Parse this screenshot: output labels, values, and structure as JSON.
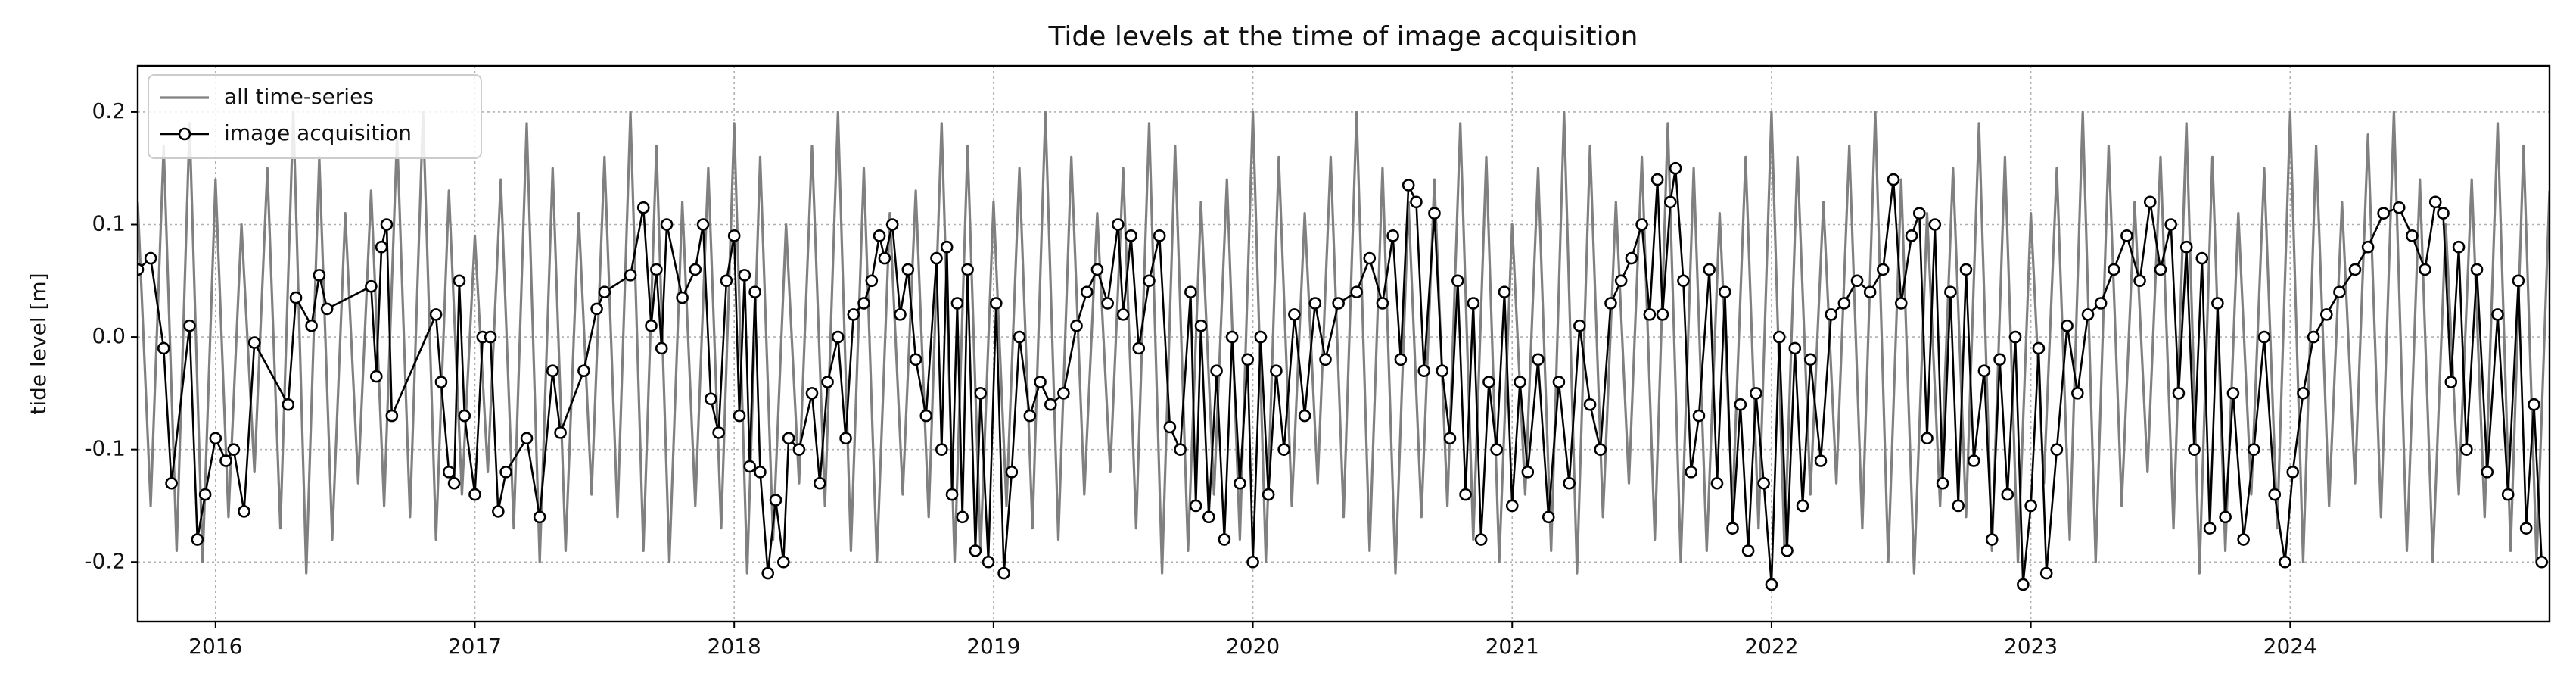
{
  "chart_data": {
    "type": "line",
    "title": "Tide levels at the time of image acquisition",
    "y_label": "tide level [m]",
    "xlim": [
      2015.7,
      2025.0
    ],
    "xticks": [
      2016,
      2017,
      2018,
      2019,
      2020,
      2021,
      2022,
      2023,
      2024
    ],
    "ylim": [
      -0.253,
      0.241
    ],
    "yticks": [
      -0.2,
      -0.1,
      {
        "value": 0,
        "label": "0.0"
      },
      0.1,
      0.2
    ],
    "grid": true,
    "legend": "upper left",
    "series": [
      {
        "name": "all time-series",
        "color": "#808080",
        "marker": false,
        "x": [
          2015.7,
          2015.75,
          2015.8,
          2015.85,
          2015.9,
          2015.95,
          2016,
          2016.05,
          2016.1,
          2016.15,
          2016.2,
          2016.25,
          2016.3,
          2016.35,
          2016.4,
          2016.45,
          2016.5,
          2016.55,
          2016.6,
          2016.65,
          2016.7,
          2016.75,
          2016.8,
          2016.85,
          2016.9,
          2016.95,
          2017,
          2017.05,
          2017.1,
          2017.15,
          2017.2,
          2017.25,
          2017.3,
          2017.35,
          2017.4,
          2017.45,
          2017.5,
          2017.55,
          2017.6,
          2017.65,
          2017.7,
          2017.75,
          2017.8,
          2017.85,
          2017.9,
          2017.95,
          2018,
          2018.05,
          2018.1,
          2018.15,
          2018.2,
          2018.25,
          2018.3,
          2018.35,
          2018.4,
          2018.45,
          2018.5,
          2018.55,
          2018.6,
          2018.65,
          2018.7,
          2018.75,
          2018.8,
          2018.85,
          2018.9,
          2018.95,
          2019,
          2019.05,
          2019.1,
          2019.15,
          2019.2,
          2019.25,
          2019.3,
          2019.35,
          2019.4,
          2019.45,
          2019.5,
          2019.55,
          2019.6,
          2019.65,
          2019.7,
          2019.75,
          2019.8,
          2019.85,
          2019.9,
          2019.95,
          2020,
          2020.05,
          2020.1,
          2020.15,
          2020.2,
          2020.25,
          2020.3,
          2020.35,
          2020.4,
          2020.45,
          2020.5,
          2020.55,
          2020.6,
          2020.65,
          2020.7,
          2020.75,
          2020.8,
          2020.85,
          2020.9,
          2020.95,
          2021,
          2021.05,
          2021.1,
          2021.15,
          2021.2,
          2021.25,
          2021.3,
          2021.35,
          2021.4,
          2021.45,
          2021.5,
          2021.55,
          2021.6,
          2021.65,
          2021.7,
          2021.75,
          2021.8,
          2021.85,
          2021.9,
          2021.95,
          2022,
          2022.05,
          2022.1,
          2022.15,
          2022.2,
          2022.25,
          2022.3,
          2022.35,
          2022.4,
          2022.45,
          2022.5,
          2022.55,
          2022.6,
          2022.65,
          2022.7,
          2022.75,
          2022.8,
          2022.85,
          2022.9,
          2022.95,
          2023,
          2023.05,
          2023.1,
          2023.15,
          2023.2,
          2023.25,
          2023.3,
          2023.35,
          2023.4,
          2023.45,
          2023.5,
          2023.55,
          2023.6,
          2023.65,
          2023.7,
          2023.75,
          2023.8,
          2023.85,
          2023.9,
          2023.95,
          2024,
          2024.05,
          2024.1,
          2024.15,
          2024.2,
          2024.25,
          2024.3,
          2024.35,
          2024.4,
          2024.45,
          2024.5,
          2024.55,
          2024.6,
          2024.65,
          2024.7,
          2024.75,
          2024.8,
          2024.85,
          2024.9,
          2024.95,
          2025
        ],
        "values": [
          0.12,
          -0.15,
          0.17,
          -0.19,
          0.19,
          -0.2,
          0.14,
          -0.16,
          0.1,
          -0.12,
          0.15,
          -0.17,
          0.2,
          -0.21,
          0.16,
          -0.18,
          0.11,
          -0.13,
          0.13,
          -0.15,
          0.18,
          -0.16,
          0.2,
          -0.18,
          0.13,
          -0.14,
          0.09,
          -0.12,
          0.14,
          -0.17,
          0.19,
          -0.2,
          0.15,
          -0.19,
          0.11,
          -0.14,
          0.16,
          -0.16,
          0.2,
          -0.19,
          0.17,
          -0.2,
          0.12,
          -0.15,
          0.15,
          -0.17,
          0.19,
          -0.21,
          0.16,
          -0.18,
          0.1,
          -0.13,
          0.17,
          -0.15,
          0.2,
          -0.19,
          0.15,
          -0.2,
          0.11,
          -0.14,
          0.13,
          -0.16,
          0.19,
          -0.2,
          0.17,
          -0.19,
          0.12,
          -0.15,
          0.15,
          -0.17,
          0.2,
          -0.18,
          0.16,
          -0.14,
          0.11,
          -0.12,
          0.15,
          -0.17,
          0.19,
          -0.21,
          0.17,
          -0.19,
          0.12,
          -0.14,
          0.14,
          -0.18,
          0.2,
          -0.2,
          0.16,
          -0.15,
          0.11,
          -0.13,
          0.16,
          -0.16,
          0.2,
          -0.19,
          0.15,
          -0.21,
          0.12,
          -0.16,
          0.14,
          -0.15,
          0.19,
          -0.18,
          0.16,
          -0.2,
          0.1,
          -0.14,
          0.15,
          -0.19,
          0.2,
          -0.21,
          0.17,
          -0.16,
          0.12,
          -0.13,
          0.16,
          -0.18,
          0.19,
          -0.2,
          0.15,
          -0.19,
          0.11,
          -0.15,
          0.16,
          -0.17,
          0.2,
          -0.19,
          0.16,
          -0.14,
          0.12,
          -0.13,
          0.17,
          -0.17,
          0.2,
          -0.2,
          0.14,
          -0.21,
          0.11,
          -0.15,
          0.15,
          -0.16,
          0.19,
          -0.19,
          0.16,
          -0.2,
          0.11,
          -0.13,
          0.15,
          -0.18,
          0.2,
          -0.2,
          0.17,
          -0.15,
          0.12,
          -0.12,
          0.16,
          -0.17,
          0.19,
          -0.21,
          0.16,
          -0.19,
          0.11,
          -0.14,
          0.15,
          -0.17,
          0.2,
          -0.2,
          0.17,
          -0.15,
          0.12,
          -0.13,
          0.18,
          -0.16,
          0.2,
          -0.19,
          0.14,
          -0.2,
          0.1,
          -0.14,
          0.14,
          -0.16,
          0.19,
          -0.19,
          0.17,
          -0.2,
          0.13
        ]
      },
      {
        "name": "image acquisition",
        "color": "#000000",
        "marker": true,
        "x": [
          2015.7,
          2015.75,
          2015.8,
          2015.83,
          2015.9,
          2015.93,
          2015.96,
          2016.0,
          2016.04,
          2016.07,
          2016.11,
          2016.15,
          2016.28,
          2016.31,
          2016.37,
          2016.4,
          2016.43,
          2016.6,
          2016.62,
          2016.64,
          2016.66,
          2016.68,
          2016.85,
          2016.87,
          2016.9,
          2016.92,
          2016.94,
          2016.96,
          2017.0,
          2017.03,
          2017.06,
          2017.09,
          2017.12,
          2017.2,
          2017.25,
          2017.3,
          2017.33,
          2017.42,
          2017.47,
          2017.5,
          2017.6,
          2017.65,
          2017.68,
          2017.7,
          2017.72,
          2017.74,
          2017.8,
          2017.85,
          2017.88,
          2017.91,
          2017.94,
          2017.97,
          2018.0,
          2018.02,
          2018.04,
          2018.06,
          2018.08,
          2018.1,
          2018.13,
          2018.16,
          2018.19,
          2018.21,
          2018.25,
          2018.3,
          2018.33,
          2018.36,
          2018.4,
          2018.43,
          2018.46,
          2018.5,
          2018.53,
          2018.56,
          2018.58,
          2018.61,
          2018.64,
          2018.67,
          2018.7,
          2018.74,
          2018.78,
          2018.8,
          2018.82,
          2018.84,
          2018.86,
          2018.88,
          2018.9,
          2018.93,
          2018.95,
          2018.98,
          2019.01,
          2019.04,
          2019.07,
          2019.1,
          2019.14,
          2019.18,
          2019.22,
          2019.27,
          2019.32,
          2019.36,
          2019.4,
          2019.44,
          2019.48,
          2019.5,
          2019.53,
          2019.56,
          2019.6,
          2019.64,
          2019.68,
          2019.72,
          2019.76,
          2019.78,
          2019.8,
          2019.83,
          2019.86,
          2019.89,
          2019.92,
          2019.95,
          2019.98,
          2020.0,
          2020.03,
          2020.06,
          2020.09,
          2020.12,
          2020.16,
          2020.2,
          2020.24,
          2020.28,
          2020.33,
          2020.4,
          2020.45,
          2020.5,
          2020.54,
          2020.57,
          2020.6,
          2020.63,
          2020.66,
          2020.7,
          2020.73,
          2020.76,
          2020.79,
          2020.82,
          2020.85,
          2020.88,
          2020.91,
          2020.94,
          2020.97,
          2021.0,
          2021.03,
          2021.06,
          2021.1,
          2021.14,
          2021.18,
          2021.22,
          2021.26,
          2021.3,
          2021.34,
          2021.38,
          2021.42,
          2021.46,
          2021.5,
          2021.53,
          2021.56,
          2021.58,
          2021.61,
          2021.63,
          2021.66,
          2021.69,
          2021.72,
          2021.76,
          2021.79,
          2021.82,
          2021.85,
          2021.88,
          2021.91,
          2021.94,
          2021.97,
          2022.0,
          2022.03,
          2022.06,
          2022.09,
          2022.12,
          2022.15,
          2022.19,
          2022.23,
          2022.28,
          2022.33,
          2022.38,
          2022.43,
          2022.47,
          2022.5,
          2022.54,
          2022.57,
          2022.6,
          2022.63,
          2022.66,
          2022.69,
          2022.72,
          2022.75,
          2022.78,
          2022.82,
          2022.85,
          2022.88,
          2022.91,
          2022.94,
          2022.97,
          2023.0,
          2023.03,
          2023.06,
          2023.1,
          2023.14,
          2023.18,
          2023.22,
          2023.27,
          2023.32,
          2023.37,
          2023.42,
          2023.46,
          2023.5,
          2023.54,
          2023.57,
          2023.6,
          2023.63,
          2023.66,
          2023.69,
          2023.72,
          2023.75,
          2023.78,
          2023.82,
          2023.86,
          2023.9,
          2023.94,
          2023.98,
          2024.01,
          2024.05,
          2024.09,
          2024.14,
          2024.19,
          2024.25,
          2024.3,
          2024.36,
          2024.42,
          2024.47,
          2024.52,
          2024.56,
          2024.59,
          2024.62,
          2024.65,
          2024.68,
          2024.72,
          2024.76,
          2024.8,
          2024.84,
          2024.88,
          2024.91,
          2024.94,
          2024.97
        ],
        "values": [
          0.06,
          0.07,
          -0.01,
          -0.13,
          0.01,
          -0.18,
          -0.14,
          -0.09,
          -0.11,
          -0.1,
          -0.155,
          -0.005,
          -0.06,
          0.035,
          0.01,
          0.055,
          0.025,
          0.045,
          -0.035,
          0.08,
          0.1,
          -0.07,
          0.02,
          -0.04,
          -0.12,
          -0.13,
          0.05,
          -0.07,
          -0.14,
          0.0,
          0.0,
          -0.155,
          -0.12,
          -0.09,
          -0.16,
          -0.03,
          -0.085,
          -0.03,
          0.025,
          0.04,
          0.055,
          0.115,
          0.01,
          0.06,
          -0.01,
          0.1,
          0.035,
          0.06,
          0.1,
          -0.055,
          -0.085,
          0.05,
          0.09,
          -0.07,
          0.055,
          -0.115,
          0.04,
          -0.12,
          -0.21,
          -0.145,
          -0.2,
          -0.09,
          -0.1,
          -0.05,
          -0.13,
          -0.04,
          0.0,
          -0.09,
          0.02,
          0.03,
          0.05,
          0.09,
          0.07,
          0.1,
          0.02,
          0.06,
          -0.02,
          -0.07,
          0.07,
          -0.1,
          0.08,
          -0.14,
          0.03,
          -0.16,
          0.06,
          -0.19,
          -0.05,
          -0.2,
          0.03,
          -0.21,
          -0.12,
          0.0,
          -0.07,
          -0.04,
          -0.06,
          -0.05,
          0.01,
          0.04,
          0.06,
          0.03,
          0.1,
          0.02,
          0.09,
          -0.01,
          0.05,
          0.09,
          -0.08,
          -0.1,
          0.04,
          -0.15,
          0.01,
          -0.16,
          -0.03,
          -0.18,
          0.0,
          -0.13,
          -0.02,
          -0.2,
          0.0,
          -0.14,
          -0.03,
          -0.1,
          0.02,
          -0.07,
          0.03,
          -0.02,
          0.03,
          0.04,
          0.07,
          0.03,
          0.09,
          -0.02,
          0.135,
          0.12,
          -0.03,
          0.11,
          -0.03,
          -0.09,
          0.05,
          -0.14,
          0.03,
          -0.18,
          -0.04,
          -0.1,
          0.04,
          -0.15,
          -0.04,
          -0.12,
          -0.02,
          -0.16,
          -0.04,
          -0.13,
          0.01,
          -0.06,
          -0.1,
          0.03,
          0.05,
          0.07,
          0.1,
          0.02,
          0.14,
          0.02,
          0.12,
          0.15,
          0.05,
          -0.12,
          -0.07,
          0.06,
          -0.13,
          0.04,
          -0.17,
          -0.06,
          -0.19,
          -0.05,
          -0.13,
          -0.22,
          0.0,
          -0.19,
          -0.01,
          -0.15,
          -0.02,
          -0.11,
          0.02,
          0.03,
          0.05,
          0.04,
          0.06,
          0.14,
          0.03,
          0.09,
          0.11,
          -0.09,
          0.1,
          -0.13,
          0.04,
          -0.15,
          0.06,
          -0.11,
          -0.03,
          -0.18,
          -0.02,
          -0.14,
          0.0,
          -0.22,
          -0.15,
          -0.01,
          -0.21,
          -0.1,
          0.01,
          -0.05,
          0.02,
          0.03,
          0.06,
          0.09,
          0.05,
          0.12,
          0.06,
          0.1,
          -0.05,
          0.08,
          -0.1,
          0.07,
          -0.17,
          0.03,
          -0.16,
          -0.05,
          -0.18,
          -0.1,
          0.0,
          -0.14,
          -0.2,
          -0.12,
          -0.05,
          0.0,
          0.02,
          0.04,
          0.06,
          0.08,
          0.11,
          0.115,
          0.09,
          0.06,
          0.12,
          0.11,
          -0.04,
          0.08,
          -0.1,
          0.06,
          -0.12,
          0.02,
          -0.14,
          0.05,
          -0.17,
          -0.06,
          -0.2
        ]
      }
    ]
  }
}
